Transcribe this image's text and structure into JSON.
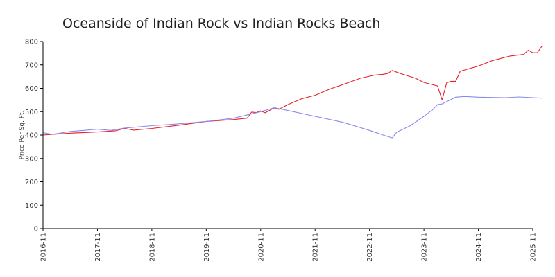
{
  "chart_data": {
    "type": "line",
    "title": "Oceanside of Indian Rock vs Indian Rocks Beach",
    "ylabel": "Price Per Sq. Ft.",
    "xlabel": "",
    "ylim": [
      0,
      800
    ],
    "yticks": [
      0,
      100,
      200,
      300,
      400,
      500,
      600,
      700,
      800
    ],
    "xlim": [
      "2016-11",
      "2025-11"
    ],
    "xticks": [
      "2016-11",
      "2017-11",
      "2018-11",
      "2019-11",
      "2020-11",
      "2021-11",
      "2022-11",
      "2023-11",
      "2024-11",
      "2025-11"
    ],
    "grid": false,
    "legend": "none",
    "series": [
      {
        "color": "#e8202a",
        "points": [
          [
            "2016-11",
            400
          ],
          [
            "2017-05",
            408
          ],
          [
            "2017-11",
            413
          ],
          [
            "2018-03",
            418
          ],
          [
            "2018-05",
            428
          ],
          [
            "2018-07",
            421
          ],
          [
            "2018-11",
            428
          ],
          [
            "2019-05",
            442
          ],
          [
            "2019-11",
            458
          ],
          [
            "2020-05",
            466
          ],
          [
            "2020-08",
            472
          ],
          [
            "2020-09",
            498
          ],
          [
            "2020-10",
            496
          ],
          [
            "2020-11",
            503
          ],
          [
            "2020-12",
            495
          ],
          [
            "2021-02",
            516
          ],
          [
            "2021-03",
            510
          ],
          [
            "2021-05",
            530
          ],
          [
            "2021-08",
            555
          ],
          [
            "2021-11",
            570
          ],
          [
            "2022-02",
            595
          ],
          [
            "2022-06",
            622
          ],
          [
            "2022-09",
            643
          ],
          [
            "2022-12",
            656
          ],
          [
            "2023-02",
            660
          ],
          [
            "2023-03",
            663
          ],
          [
            "2023-04",
            676
          ],
          [
            "2023-06",
            662
          ],
          [
            "2023-09",
            644
          ],
          [
            "2023-11",
            625
          ],
          [
            "2024-02",
            610
          ],
          [
            "2024-03",
            550
          ],
          [
            "2024-04",
            623
          ],
          [
            "2024-05",
            630
          ],
          [
            "2024-06",
            630
          ],
          [
            "2024-07",
            673
          ],
          [
            "2024-11",
            695
          ],
          [
            "2025-02",
            718
          ],
          [
            "2025-06",
            738
          ],
          [
            "2025-09",
            745
          ],
          [
            "2025-10",
            763
          ],
          [
            "2025-11",
            752
          ],
          [
            "2025-12",
            752
          ],
          [
            "2026-01",
            780
          ]
        ]
      },
      {
        "color": "#8a8aee",
        "points": [
          [
            "2016-11",
            410
          ],
          [
            "2017-01",
            403
          ],
          [
            "2017-05",
            415
          ],
          [
            "2017-11",
            425
          ],
          [
            "2018-02",
            420
          ],
          [
            "2018-05",
            430
          ],
          [
            "2018-11",
            440
          ],
          [
            "2019-05",
            448
          ],
          [
            "2019-11",
            458
          ],
          [
            "2020-05",
            472
          ],
          [
            "2020-11",
            500
          ],
          [
            "2021-02",
            517
          ],
          [
            "2021-05",
            505
          ],
          [
            "2021-11",
            480
          ],
          [
            "2022-05",
            455
          ],
          [
            "2022-11",
            420
          ],
          [
            "2023-02",
            400
          ],
          [
            "2023-04",
            388
          ],
          [
            "2023-05",
            412
          ],
          [
            "2023-08",
            440
          ],
          [
            "2023-11",
            480
          ],
          [
            "2024-01",
            510
          ],
          [
            "2024-02",
            530
          ],
          [
            "2024-03",
            533
          ],
          [
            "2024-06",
            562
          ],
          [
            "2024-08",
            565
          ],
          [
            "2024-11",
            562
          ],
          [
            "2025-05",
            560
          ],
          [
            "2025-08",
            563
          ],
          [
            "2025-11",
            560
          ],
          [
            "2026-01",
            558
          ]
        ]
      }
    ]
  }
}
